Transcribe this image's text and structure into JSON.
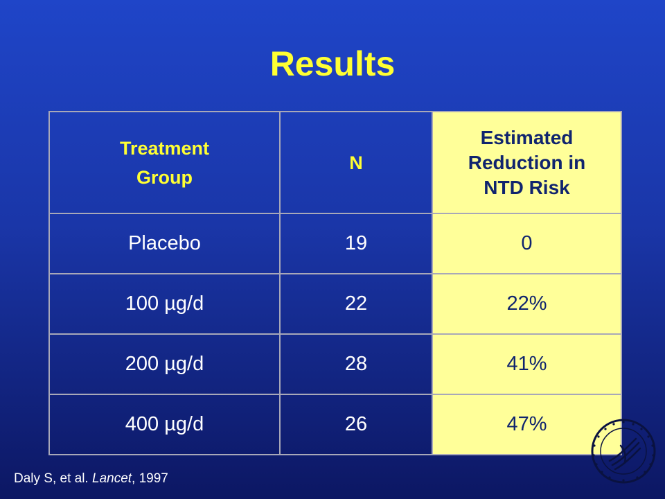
{
  "slide": {
    "title": "Results"
  },
  "table": {
    "headers": {
      "group_line1": "Treatment",
      "group_line2": "Group",
      "n": "N",
      "reduction_line1": "Estimated",
      "reduction_line2": "Reduction in",
      "reduction_line3": "NTD Risk"
    },
    "rows": [
      {
        "group": "Placebo",
        "n": "19",
        "reduction": "0"
      },
      {
        "group": "100 µg/d",
        "n": "22",
        "reduction": "22%"
      },
      {
        "group": "200 µg/d",
        "n": "28",
        "reduction": "41%"
      },
      {
        "group": "400 µg/d",
        "n": "26",
        "reduction": "47%"
      }
    ]
  },
  "citation": {
    "authors": "Daly S, et al. ",
    "journal": "Lancet",
    "year": ", 1997"
  },
  "colors": {
    "background_top": "#1f45c8",
    "background_bottom": "#0c1763",
    "title": "#ffff33",
    "highlight_column": "#ffff99"
  },
  "logo": {
    "icon": "hhs-eagle-seal-icon"
  }
}
